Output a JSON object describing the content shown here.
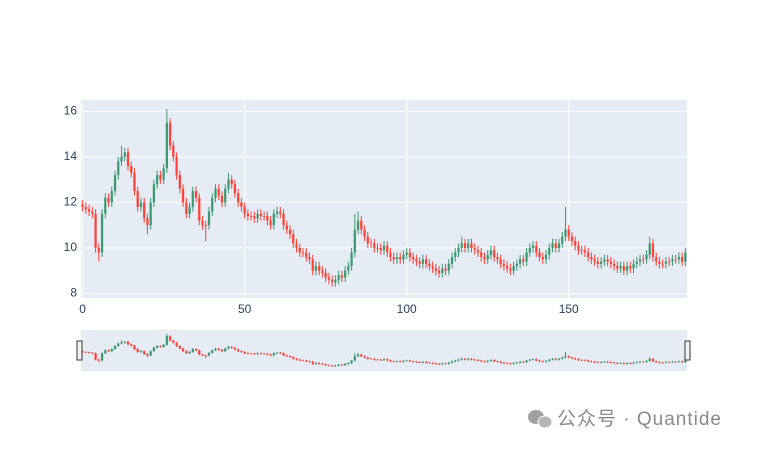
{
  "chart_data": {
    "type": "candlestick",
    "increasing_color": "#3D9970",
    "decreasing_color": "#FF4136",
    "xlim": [
      -0.5,
      186.5
    ],
    "ylim": [
      7.8,
      16.5
    ],
    "xticks": [
      0,
      50,
      100,
      150
    ],
    "yticks": [
      8,
      10,
      12,
      14,
      16
    ],
    "grid": true,
    "rangeslider": true,
    "open": [
      11.9,
      11.8,
      11.7,
      11.6,
      11.5,
      10.0,
      9.8,
      11.5,
      12.2,
      12.0,
      12.5,
      13.2,
      13.8,
      14.0,
      14.2,
      13.6,
      13.3,
      12.5,
      11.8,
      12.0,
      11.3,
      11.0,
      12.0,
      12.8,
      13.2,
      13.0,
      13.5,
      15.5,
      14.5,
      14.0,
      13.2,
      12.6,
      12.0,
      11.5,
      11.8,
      12.5,
      12.2,
      11.2,
      11.0,
      11.0,
      11.6,
      12.2,
      12.6,
      12.3,
      12.0,
      12.6,
      13.0,
      12.8,
      12.4,
      12.0,
      11.8,
      11.5,
      11.4,
      11.4,
      11.3,
      11.5,
      11.4,
      11.4,
      11.2,
      11.0,
      11.5,
      11.6,
      11.5,
      11.0,
      10.8,
      10.6,
      10.2,
      10.0,
      9.8,
      9.8,
      9.6,
      9.5,
      9.0,
      9.2,
      9.0,
      8.9,
      8.7,
      8.6,
      8.5,
      8.6,
      8.8,
      8.7,
      9.0,
      9.2,
      9.8,
      10.8,
      11.2,
      10.8,
      10.5,
      10.2,
      10.2,
      10.0,
      10.0,
      9.9,
      10.1,
      9.8,
      9.6,
      9.5,
      9.6,
      9.5,
      9.7,
      9.8,
      9.6,
      9.5,
      9.4,
      9.3,
      9.5,
      9.3,
      9.2,
      9.1,
      9.0,
      8.9,
      9.1,
      9.0,
      9.3,
      9.6,
      9.8,
      10.0,
      10.2,
      10.0,
      10.2,
      10.0,
      9.9,
      9.8,
      9.6,
      9.5,
      9.7,
      9.9,
      9.6,
      9.5,
      9.3,
      9.2,
      9.1,
      9.0,
      9.2,
      9.3,
      9.5,
      9.4,
      9.8,
      10.0,
      10.1,
      9.8,
      9.6,
      9.5,
      9.7,
      10.0,
      10.2,
      10.0,
      10.2,
      10.5,
      10.8,
      10.5,
      10.3,
      10.1,
      9.9,
      9.9,
      9.8,
      9.6,
      9.5,
      9.4,
      9.3,
      9.4,
      9.5,
      9.4,
      9.3,
      9.2,
      9.1,
      9.2,
      9.0,
      9.2,
      9.1,
      9.3,
      9.4,
      9.5,
      9.5,
      9.7,
      10.2,
      9.6,
      9.4,
      9.3,
      9.3,
      9.4,
      9.4,
      9.5,
      9.5,
      9.6,
      9.4
    ],
    "high": [
      12.1,
      12.0,
      11.9,
      11.8,
      11.7,
      10.2,
      11.7,
      12.4,
      12.4,
      12.7,
      13.4,
      14.0,
      14.5,
      14.4,
      14.4,
      13.8,
      13.5,
      12.7,
      12.2,
      12.2,
      11.5,
      12.2,
      13.0,
      13.4,
      13.4,
      13.7,
      16.1,
      15.7,
      14.7,
      14.2,
      13.4,
      12.8,
      12.2,
      12.0,
      12.7,
      12.7,
      12.4,
      11.4,
      11.2,
      11.8,
      12.4,
      12.8,
      12.8,
      12.5,
      12.8,
      13.3,
      13.2,
      13.0,
      12.6,
      12.2,
      12.0,
      11.7,
      11.6,
      11.6,
      11.7,
      11.7,
      11.6,
      11.6,
      11.4,
      11.7,
      11.8,
      11.8,
      11.7,
      11.2,
      11.0,
      10.8,
      10.4,
      10.2,
      10.0,
      10.0,
      9.8,
      9.7,
      9.4,
      9.4,
      9.2,
      9.1,
      8.9,
      8.8,
      8.8,
      9.0,
      9.0,
      9.2,
      9.4,
      10.0,
      11.5,
      11.6,
      11.4,
      11.0,
      10.7,
      10.4,
      10.4,
      10.2,
      10.2,
      10.3,
      10.3,
      10.0,
      9.8,
      9.8,
      9.8,
      9.9,
      10.0,
      10.0,
      9.8,
      9.7,
      9.6,
      9.7,
      9.7,
      9.5,
      9.4,
      9.3,
      9.2,
      9.3,
      9.3,
      9.5,
      9.8,
      10.0,
      10.2,
      10.5,
      10.4,
      10.4,
      10.4,
      10.2,
      10.1,
      10.0,
      9.8,
      9.9,
      10.1,
      10.1,
      9.8,
      9.7,
      9.5,
      9.4,
      9.3,
      9.4,
      9.5,
      9.7,
      9.7,
      10.0,
      10.2,
      10.3,
      10.3,
      10.0,
      9.8,
      9.9,
      10.2,
      10.4,
      10.4,
      10.4,
      10.7,
      11.8,
      11.0,
      10.7,
      10.5,
      10.3,
      10.1,
      10.1,
      10.0,
      9.8,
      9.7,
      9.6,
      9.6,
      9.7,
      9.7,
      9.6,
      9.5,
      9.4,
      9.4,
      9.4,
      9.4,
      9.4,
      9.5,
      9.6,
      9.7,
      9.7,
      9.9,
      10.5,
      10.4,
      9.8,
      9.6,
      9.5,
      9.6,
      9.6,
      9.7,
      9.7,
      9.8,
      9.8,
      10.0
    ],
    "low": [
      11.6,
      11.5,
      11.4,
      11.3,
      9.8,
      9.4,
      9.6,
      11.3,
      11.8,
      11.8,
      12.3,
      13.0,
      13.6,
      13.8,
      13.4,
      13.1,
      12.3,
      11.6,
      11.6,
      11.1,
      10.6,
      10.8,
      11.8,
      12.6,
      12.8,
      12.8,
      13.3,
      14.3,
      13.8,
      13.0,
      12.4,
      11.8,
      11.3,
      11.3,
      11.6,
      12.0,
      11.0,
      10.8,
      10.3,
      10.8,
      11.4,
      12.0,
      12.1,
      11.8,
      11.8,
      12.4,
      12.6,
      12.2,
      11.8,
      11.6,
      11.3,
      11.2,
      11.2,
      11.1,
      11.1,
      11.2,
      11.2,
      11.0,
      10.8,
      10.8,
      11.3,
      11.3,
      10.8,
      10.6,
      10.4,
      10.0,
      9.8,
      9.6,
      9.6,
      9.4,
      9.3,
      8.8,
      8.8,
      8.8,
      8.7,
      8.5,
      8.4,
      8.3,
      8.3,
      8.4,
      8.5,
      8.5,
      8.8,
      9.0,
      9.6,
      10.6,
      10.6,
      10.3,
      10.0,
      10.0,
      9.8,
      9.8,
      9.7,
      9.7,
      9.6,
      9.4,
      9.3,
      9.3,
      9.3,
      9.3,
      9.5,
      9.4,
      9.3,
      9.2,
      9.1,
      9.1,
      9.1,
      9.0,
      8.9,
      8.8,
      8.7,
      8.7,
      8.8,
      8.8,
      9.1,
      9.4,
      9.6,
      9.8,
      9.8,
      9.8,
      9.8,
      9.7,
      9.6,
      9.4,
      9.3,
      9.3,
      9.5,
      9.4,
      9.3,
      9.1,
      9.0,
      8.9,
      8.8,
      8.8,
      9.0,
      9.1,
      9.2,
      9.2,
      9.6,
      9.8,
      9.6,
      9.4,
      9.3,
      9.3,
      9.5,
      9.8,
      9.8,
      9.8,
      10.0,
      10.3,
      10.3,
      10.1,
      9.9,
      9.7,
      9.7,
      9.6,
      9.4,
      9.3,
      9.2,
      9.1,
      9.1,
      9.2,
      9.2,
      9.1,
      9.0,
      8.9,
      8.9,
      8.8,
      8.8,
      8.9,
      8.9,
      9.1,
      9.2,
      9.3,
      9.3,
      9.5,
      9.4,
      9.2,
      9.1,
      9.1,
      9.1,
      9.2,
      9.2,
      9.3,
      9.3,
      9.2,
      9.2
    ],
    "close": [
      11.8,
      11.7,
      11.6,
      11.5,
      10.0,
      9.8,
      11.5,
      12.2,
      12.0,
      12.5,
      13.2,
      13.8,
      14.0,
      14.2,
      13.6,
      13.3,
      12.5,
      11.8,
      12.0,
      11.3,
      11.0,
      12.0,
      12.8,
      13.2,
      13.0,
      13.5,
      15.5,
      14.5,
      14.0,
      13.2,
      12.6,
      12.0,
      11.5,
      11.8,
      12.5,
      12.2,
      11.2,
      11.0,
      11.0,
      11.6,
      12.2,
      12.6,
      12.3,
      12.0,
      12.6,
      13.0,
      12.8,
      12.4,
      12.0,
      11.8,
      11.5,
      11.4,
      11.4,
      11.3,
      11.5,
      11.4,
      11.4,
      11.2,
      11.0,
      11.5,
      11.6,
      11.5,
      11.0,
      10.8,
      10.6,
      10.2,
      10.0,
      9.8,
      9.8,
      9.6,
      9.5,
      9.0,
      9.2,
      9.0,
      8.9,
      8.7,
      8.6,
      8.5,
      8.6,
      8.8,
      8.7,
      9.0,
      9.2,
      9.8,
      10.8,
      11.2,
      10.8,
      10.5,
      10.2,
      10.2,
      10.0,
      10.0,
      9.9,
      10.1,
      9.8,
      9.6,
      9.5,
      9.6,
      9.5,
      9.7,
      9.8,
      9.6,
      9.5,
      9.4,
      9.3,
      9.5,
      9.3,
      9.2,
      9.1,
      9.0,
      8.9,
      9.1,
      9.0,
      9.3,
      9.6,
      9.8,
      10.0,
      10.2,
      10.0,
      10.2,
      10.0,
      9.9,
      9.8,
      9.6,
      9.5,
      9.7,
      9.9,
      9.6,
      9.5,
      9.3,
      9.2,
      9.1,
      9.0,
      9.2,
      9.3,
      9.5,
      9.4,
      9.8,
      10.0,
      10.1,
      9.8,
      9.6,
      9.5,
      9.7,
      10.0,
      10.2,
      10.0,
      10.2,
      10.5,
      10.8,
      10.5,
      10.3,
      10.1,
      9.9,
      9.9,
      9.8,
      9.6,
      9.5,
      9.4,
      9.3,
      9.4,
      9.5,
      9.4,
      9.3,
      9.2,
      9.1,
      9.2,
      9.0,
      9.2,
      9.1,
      9.3,
      9.4,
      9.5,
      9.5,
      9.7,
      10.2,
      9.6,
      9.4,
      9.3,
      9.3,
      9.4,
      9.4,
      9.5,
      9.5,
      9.6,
      9.4,
      9.8
    ]
  },
  "watermark": "公众号 · Quantide"
}
